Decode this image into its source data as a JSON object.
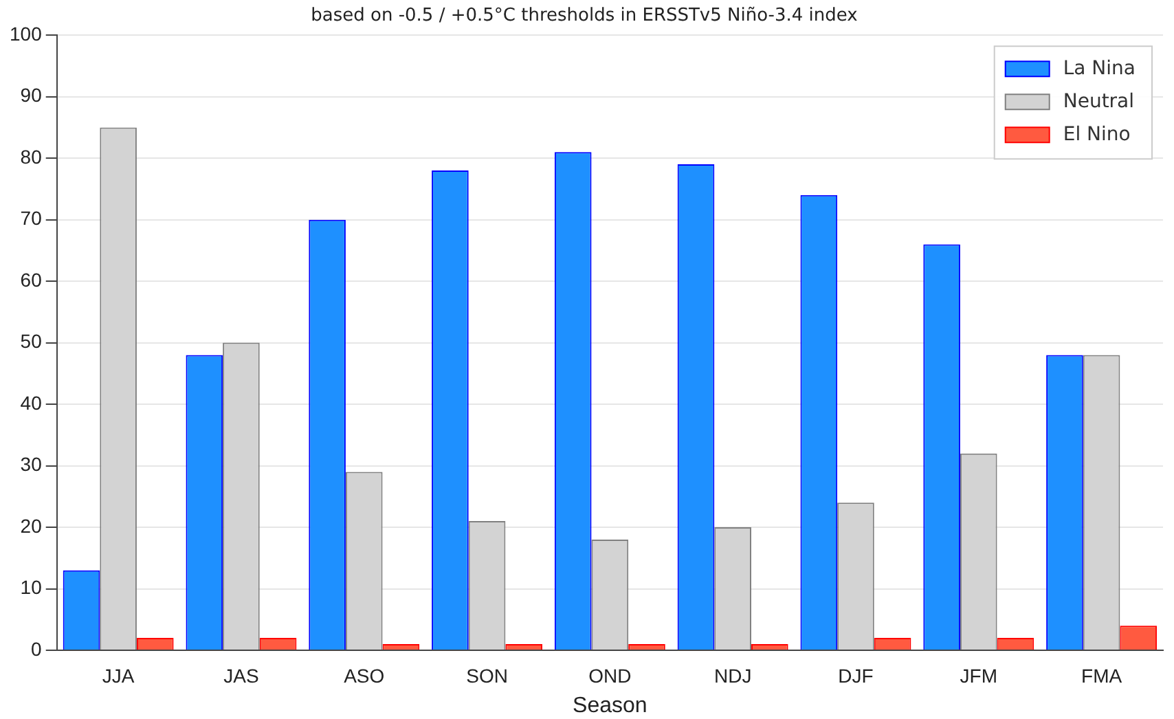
{
  "chart_data": {
    "type": "bar",
    "title": "based on -0.5 / +0.5°C thresholds in ERSSTv5 Niño-3.4 index",
    "xlabel": "Season",
    "categories": [
      "JJA",
      "JAS",
      "ASO",
      "SON",
      "OND",
      "NDJ",
      "DJF",
      "JFM",
      "FMA"
    ],
    "series": [
      {
        "name": "La Nina",
        "color": "#1e90ff",
        "values": [
          13,
          48,
          70,
          78,
          81,
          79,
          74,
          66,
          48
        ]
      },
      {
        "name": "Neutral",
        "color": "#d3d3d3",
        "values": [
          85,
          50,
          29,
          21,
          18,
          20,
          24,
          32,
          48
        ]
      },
      {
        "name": "El Nino",
        "color": "#ff5a40",
        "values": [
          2,
          2,
          1,
          1,
          1,
          1,
          2,
          2,
          4
        ]
      }
    ],
    "ylim": [
      0,
      100
    ],
    "yticks": [
      0,
      10,
      20,
      30,
      40,
      50,
      60,
      70,
      80,
      90,
      100
    ],
    "grid": "y",
    "legend": "top right"
  }
}
